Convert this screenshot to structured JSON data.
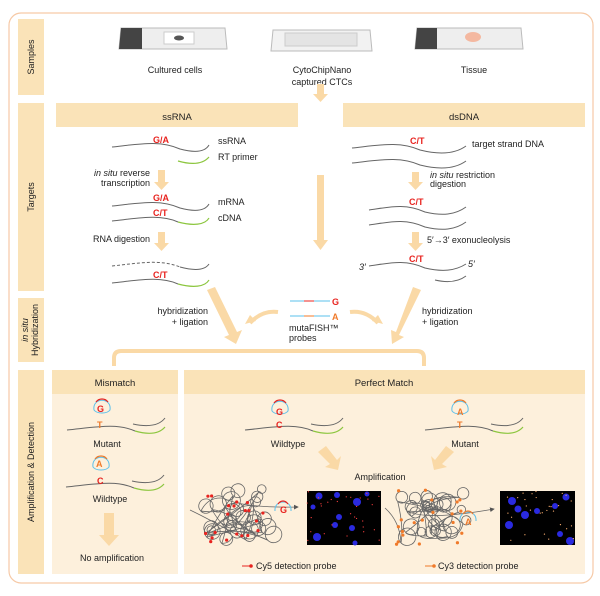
{
  "colors": {
    "panel": "#fae3b8",
    "panel_light": "#fdf0dc",
    "arrow": "#fad9a6",
    "border": "#f6c9a6",
    "mutant_red": "#e8231f",
    "mutant_orange": "#f07a2a",
    "primer_green": "#8cc63f",
    "probe_blue": "#5bc0eb"
  },
  "row_labels": {
    "samples": "Samples",
    "targets": "Targets",
    "hybridization_italic": "in situ",
    "hybridization": "Hybridization",
    "amplification": "Amplification & Detection"
  },
  "samples": {
    "cultured": "Cultured cells",
    "chip_line1": "CytoChipNano",
    "chip_line2": "captured CTCs",
    "tissue": "Tissue"
  },
  "ssrna": {
    "header": "ssRNA",
    "allele1": "G/A",
    "label_ssrna": "ssRNA",
    "label_primer": "RT primer",
    "step1_italic": "in situ",
    "step1_rest": " reverse",
    "step1_line2": "transcription",
    "allele2": "G/A",
    "label_mrna": "mRNA",
    "allele3": "C/T",
    "label_cdna": "cDNA",
    "step2": "RNA digestion",
    "allele4": "C/T"
  },
  "dsdna": {
    "header": "dsDNA",
    "allele1": "C/T",
    "label_target": "target strand DNA",
    "step1_italic": "in situ",
    "step1_rest": " restriction",
    "step1_line2": "digestion",
    "allele2": "C/T",
    "step2": "5′→3′ exonucleolysis",
    "allele3": "C/T",
    "end3": "3′",
    "end5": "5′"
  },
  "hybridization": {
    "left_line1": "hybridization",
    "left_line2": "+ ligation",
    "right_line1": "hybridization",
    "right_line2": "+ ligation",
    "probe_g": "G",
    "probe_a": "A",
    "probes_line1": "mutaFISH™",
    "probes_line2": "probes"
  },
  "mismatch": {
    "header": "Mismatch",
    "probe1": "G",
    "base1": "T",
    "label1": "Mutant",
    "probe2": "A",
    "base2": "C",
    "label2": "Wildtype",
    "result": "No amplification"
  },
  "perfect": {
    "header": "Perfect Match",
    "probe1": "G",
    "base1": "C",
    "label1": "Wildtype",
    "probe2": "A",
    "base2": "T",
    "label2": "Mutant",
    "amplification": "Amplification",
    "rca_probe1": "G",
    "rca_probe2": "A",
    "legend_cy5": "Cy5 detection probe",
    "legend_cy3": "Cy3 detection probe"
  }
}
